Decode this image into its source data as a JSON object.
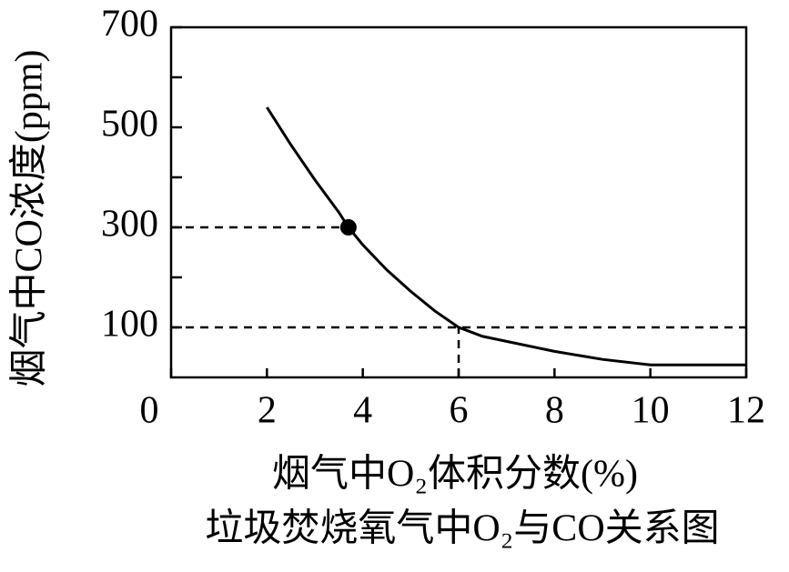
{
  "chart_data": {
    "type": "line",
    "x_label": "烟气中O₂体积分数(%)",
    "y_label": "烟气中CO浓度(ppm)",
    "caption": "垃圾焚烧氧气中O₂与CO关系图",
    "x": [
      2,
      2.5,
      3,
      3.5,
      3.7,
      4,
      4.5,
      5,
      5.5,
      6,
      6.5,
      7,
      8,
      9,
      10,
      11,
      12
    ],
    "series": [
      {
        "name": "CO",
        "color": "#000000",
        "values": [
          540,
          465,
          395,
          330,
          300,
          265,
          215,
          172,
          133,
          100,
          82,
          72,
          52,
          36,
          25,
          25,
          25
        ]
      }
    ],
    "marker": {
      "x": 3.7,
      "y": 300
    },
    "guide": {
      "x": 6,
      "y": 100
    },
    "xlim": [
      0,
      12
    ],
    "xticks": [
      0,
      2,
      4,
      6,
      8,
      10,
      12
    ],
    "ylim": [
      0,
      700
    ],
    "yticks": [
      100,
      300,
      500,
      700
    ],
    "yminor_ticks": [
      200,
      400,
      600
    ]
  }
}
